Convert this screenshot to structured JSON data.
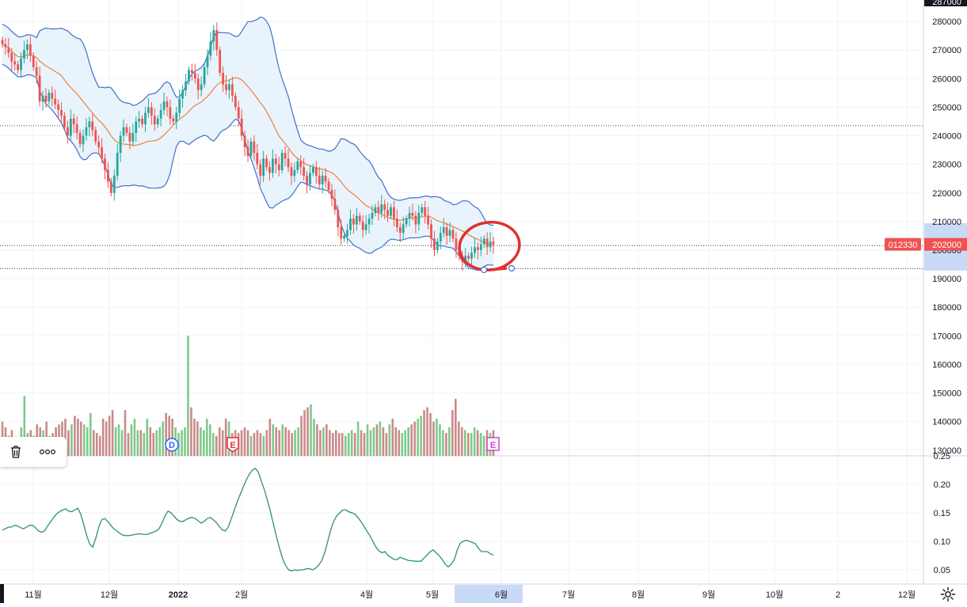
{
  "chart_data": {
    "type": "candlestick",
    "price_axis": {
      "ticks": [
        280000,
        270000,
        260000,
        250000,
        240000,
        230000,
        220000,
        210000,
        200000,
        190000,
        180000,
        170000,
        160000,
        150000,
        140000,
        130000
      ],
      "top_label": "287000",
      "range": [
        128000,
        287500
      ]
    },
    "indicator_axis": {
      "ticks": [
        "0.25",
        "0.20",
        "0.15",
        "0.10",
        "0.05"
      ],
      "range": [
        0.025,
        0.25
      ]
    },
    "time_axis": {
      "labels": [
        "11월",
        "12월",
        "2022",
        "2월",
        "4월",
        "5월",
        "6월",
        "7월",
        "8월",
        "9월",
        "10월",
        "2",
        "12월"
      ],
      "highlighted": "6월"
    },
    "price_labels": {
      "symbol": "012330",
      "last_price": "202000",
      "last_value": 202000
    },
    "horizontal_lines": [
      243500,
      201600,
      193500
    ],
    "closes": [
      272000,
      271000,
      269000,
      266000,
      265000,
      263000,
      267000,
      270000,
      272000,
      268000,
      264000,
      261000,
      252000,
      254000,
      252000,
      255000,
      253000,
      251000,
      249000,
      247000,
      243000,
      240000,
      246000,
      244000,
      241000,
      237000,
      240000,
      243000,
      245000,
      242000,
      238000,
      236000,
      232000,
      228000,
      224000,
      220000,
      226000,
      234000,
      240000,
      243000,
      241000,
      238000,
      241000,
      245000,
      246000,
      244000,
      248000,
      250000,
      247000,
      244000,
      246000,
      249000,
      252000,
      250000,
      246000,
      245000,
      248000,
      253000,
      256000,
      259000,
      263000,
      262000,
      260000,
      256000,
      258000,
      264000,
      268000,
      273000,
      277000,
      270000,
      262000,
      258000,
      256000,
      258000,
      254000,
      250000,
      246000,
      240000,
      236000,
      233000,
      238000,
      234000,
      230000,
      226000,
      232000,
      229000,
      227000,
      232000,
      230000,
      228000,
      234000,
      232000,
      229000,
      226000,
      228000,
      231000,
      229000,
      226000,
      223000,
      227000,
      229000,
      226000,
      223000,
      226000,
      224000,
      221000,
      218000,
      214000,
      208000,
      204000,
      205000,
      207000,
      211000,
      209000,
      212000,
      210000,
      207000,
      209000,
      211000,
      213000,
      215000,
      213000,
      216000,
      214000,
      212000,
      215000,
      211000,
      208000,
      206000,
      209000,
      211000,
      213000,
      212000,
      209000,
      213000,
      215000,
      212000,
      209000,
      204000,
      200000,
      203000,
      206000,
      208000,
      205000,
      207000,
      204000,
      200000,
      198000,
      196000,
      198000,
      197000,
      199000,
      201000,
      200000,
      202000,
      204000,
      201000,
      203000,
      202000
    ],
    "volume": {
      "range": [
        128000,
        287500
      ],
      "values": [
        140000,
        138000,
        135000,
        137000,
        133000,
        134000,
        138000,
        149000,
        136000,
        137000,
        135000,
        139000,
        138000,
        137000,
        140000,
        135000,
        136000,
        138000,
        139000,
        140000,
        141000,
        137000,
        139000,
        142000,
        141000,
        140000,
        139000,
        138000,
        143000,
        137000,
        136000,
        135000,
        141000,
        140000,
        142000,
        144000,
        138000,
        139000,
        137000,
        144000,
        136000,
        139000,
        141000,
        137000,
        137000,
        136000,
        141000,
        138000,
        136000,
        137000,
        138000,
        140000,
        143000,
        142000,
        141000,
        138000,
        136000,
        137000,
        138000,
        170000,
        145000,
        141000,
        140000,
        138000,
        137000,
        141000,
        139000,
        136000,
        135000,
        138000,
        137000,
        141000,
        140000,
        136000,
        137000,
        136000,
        137000,
        138000,
        137000,
        135000,
        136000,
        137000,
        136000,
        135000,
        137000,
        141000,
        139000,
        138000,
        137000,
        139000,
        138000,
        137000,
        136000,
        137000,
        138000,
        142000,
        144000,
        145000,
        146000,
        141000,
        139000,
        137000,
        138000,
        139000,
        137000,
        136000,
        137000,
        136000,
        136000,
        135000,
        136000,
        137000,
        136000,
        140000,
        137000,
        136000,
        139000,
        137000,
        138000,
        139000,
        140000,
        138000,
        136000,
        139000,
        141000,
        138000,
        137000,
        136000,
        137000,
        138000,
        139000,
        140000,
        141000,
        142000,
        144000,
        145000,
        143000,
        140000,
        141000,
        139000,
        137000,
        136000,
        138000,
        144000,
        148000,
        140000,
        138000,
        137000,
        136000,
        136000,
        138000,
        137000,
        136000,
        135000,
        137000,
        136000,
        137000
      ],
      "up_color": "#7fc98a",
      "down_color": "#c98a8a"
    },
    "indicator_values": [
      0.12,
      0.122,
      0.125,
      0.125,
      0.128,
      0.127,
      0.124,
      0.122,
      0.125,
      0.128,
      0.128,
      0.124,
      0.118,
      0.116,
      0.118,
      0.127,
      0.134,
      0.142,
      0.148,
      0.152,
      0.155,
      0.157,
      0.153,
      0.152,
      0.155,
      0.158,
      0.148,
      0.13,
      0.11,
      0.095,
      0.09,
      0.105,
      0.125,
      0.138,
      0.14,
      0.135,
      0.128,
      0.122,
      0.118,
      0.114,
      0.111,
      0.11,
      0.11,
      0.111,
      0.112,
      0.113,
      0.113,
      0.112,
      0.112,
      0.114,
      0.116,
      0.118,
      0.122,
      0.132,
      0.145,
      0.153,
      0.15,
      0.144,
      0.138,
      0.135,
      0.135,
      0.138,
      0.141,
      0.142,
      0.14,
      0.136,
      0.132,
      0.135,
      0.14,
      0.142,
      0.138,
      0.133,
      0.126,
      0.12,
      0.118,
      0.125,
      0.14,
      0.155,
      0.17,
      0.183,
      0.196,
      0.208,
      0.218,
      0.225,
      0.228,
      0.221,
      0.205,
      0.19,
      0.172,
      0.152,
      0.13,
      0.108,
      0.088,
      0.07,
      0.058,
      0.05,
      0.048,
      0.05,
      0.049,
      0.05,
      0.05,
      0.052,
      0.052,
      0.05,
      0.053,
      0.058,
      0.066,
      0.08,
      0.1,
      0.12,
      0.135,
      0.145,
      0.15,
      0.155,
      0.155,
      0.152,
      0.15,
      0.148,
      0.142,
      0.135,
      0.127,
      0.118,
      0.11,
      0.1,
      0.09,
      0.083,
      0.08,
      0.082,
      0.075,
      0.072,
      0.068,
      0.068,
      0.072,
      0.07,
      0.068,
      0.066,
      0.066,
      0.065,
      0.065,
      0.065,
      0.071,
      0.076,
      0.082,
      0.085,
      0.08,
      0.075,
      0.068,
      0.06,
      0.055,
      0.06,
      0.068,
      0.085,
      0.097,
      0.1,
      0.102,
      0.1,
      0.098,
      0.096,
      0.088,
      0.082,
      0.082,
      0.082,
      0.078,
      0.076
    ],
    "colors": {
      "up": "#26a69a",
      "down": "#ef5350",
      "ma": "#e8843a",
      "band": "#3f6fd0",
      "band_fill": "#e9f3fb",
      "indicator": "#2f8f7d",
      "annotation": "#e03030",
      "highlight": "#c9daf8"
    },
    "markers": [
      {
        "label": "D",
        "color": "#2962ff"
      },
      {
        "label": "E",
        "color": "#e03030"
      },
      {
        "label": "E",
        "color": "#cc44cc"
      }
    ]
  },
  "icons": {
    "delete": "trash-icon",
    "more": "more-icon",
    "settings": "gear-icon"
  }
}
